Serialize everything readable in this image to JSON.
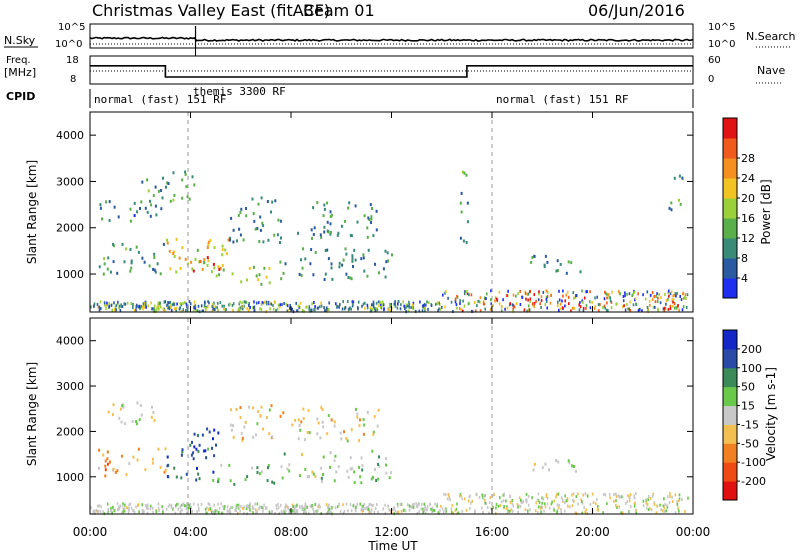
{
  "header": {
    "title": "Christmas Valley East (fitACF)",
    "beam": "Beam 01",
    "date": "06/Jun/2016"
  },
  "summary": {
    "nsky_label": "N.Sky",
    "nsearch_label": "N.Search",
    "nsky_ticks": [
      "10^5",
      "10^0"
    ],
    "nsearch_ticks": [
      "10^5",
      "10^0"
    ],
    "freq_label": "Freq.",
    "freq_unit": "[MHz]",
    "freq_ticks": [
      "18",
      "8"
    ],
    "nave_label": "Nave",
    "nave_ticks": [
      "60",
      "0"
    ],
    "cpid_label": "CPID",
    "cpid_segments": [
      {
        "label": "normal (fast) 151 RF",
        "start_hour": 0
      },
      {
        "label": "themis 3300 RF",
        "start_hour": 3.9
      },
      {
        "label": "normal (fast) 151 RF",
        "start_hour": 16.0
      }
    ],
    "freq_series": [
      {
        "hour": 0,
        "mhz": 14.5
      },
      {
        "hour": 3,
        "mhz": 14.5
      },
      {
        "hour": 3,
        "mhz": 10.5
      },
      {
        "hour": 15,
        "mhz": 10.5
      },
      {
        "hour": 15,
        "mhz": 14.5
      },
      {
        "hour": 24,
        "mhz": 14.5
      }
    ]
  },
  "chart_data": [
    {
      "type": "heatmap",
      "name": "power",
      "ylabel": "Slant Range [km]",
      "yticks": [
        "1000",
        "2000",
        "3000",
        "4000"
      ],
      "ylim": [
        180,
        4500
      ],
      "xlim": [
        0,
        24
      ],
      "colorbar_label": "Power [dB]",
      "colorbar_ticks": [
        "4",
        "8",
        "12",
        "16",
        "20",
        "24",
        "28"
      ],
      "colorbar_colors": [
        "#1f2ff0",
        "#2c5aa0",
        "#3a8a78",
        "#5aaf4a",
        "#9bd03a",
        "#f2c423",
        "#f39020",
        "#f05a1a",
        "#e01414"
      ],
      "clim": [
        0,
        32
      ],
      "blobs": [
        {
          "x0": 0.3,
          "x1": 3.2,
          "r0": 2150,
          "r1": 2600,
          "v": 8
        },
        {
          "x0": 0.3,
          "x1": 3.0,
          "r0": 1000,
          "r1": 1700,
          "v": 10
        },
        {
          "x0": 2.0,
          "x1": 4.2,
          "r0": 2600,
          "r1": 3300,
          "v": 10
        },
        {
          "x0": 3.0,
          "x1": 5.5,
          "r0": 900,
          "r1": 1800,
          "v": 18
        },
        {
          "x0": 4.0,
          "x1": 5.2,
          "r0": 1050,
          "r1": 1400,
          "v": 27
        },
        {
          "x0": 5.0,
          "x1": 7.5,
          "r0": 800,
          "r1": 1200,
          "v": 16
        },
        {
          "x0": 5.5,
          "x1": 7.8,
          "r0": 1700,
          "r1": 2700,
          "v": 9
        },
        {
          "x0": 7.5,
          "x1": 12.0,
          "r0": 900,
          "r1": 1600,
          "v": 9
        },
        {
          "x0": 8.0,
          "x1": 11.5,
          "r0": 1800,
          "r1": 2600,
          "v": 9
        },
        {
          "x0": 14.7,
          "x1": 15.1,
          "r0": 1700,
          "r1": 3300,
          "v": 10
        },
        {
          "x0": 17.5,
          "x1": 19.6,
          "r0": 1000,
          "r1": 1450,
          "v": 9
        },
        {
          "x0": 23.0,
          "x1": 23.6,
          "r0": 2400,
          "r1": 3300,
          "v": 11
        }
      ]
    },
    {
      "type": "heatmap",
      "name": "velocity",
      "ylabel": "Slant Range [km]",
      "yticks": [
        "1000",
        "2000",
        "3000",
        "4000"
      ],
      "ylim": [
        180,
        4500
      ],
      "xlim": [
        0,
        24
      ],
      "colorbar_label": "Velocity [m s-1]",
      "colorbar_ticks": [
        "200",
        "100",
        "50",
        "15",
        "-15",
        "-50",
        "-100",
        "-200"
      ],
      "colorbar_colors": [
        "#1428c8",
        "#2a4aa8",
        "#3a8a5a",
        "#6ac84a",
        "#c8c8c8",
        "#f2c050",
        "#f08020",
        "#f04a14",
        "#e01010"
      ],
      "clim": [
        -250,
        250
      ],
      "blobs": [
        {
          "x0": 0.3,
          "x1": 2.8,
          "r0": 2200,
          "r1": 2700,
          "v": -5
        },
        {
          "x0": 0.3,
          "x1": 3.0,
          "r0": 1050,
          "r1": 1700,
          "v": -80
        },
        {
          "x0": 3.0,
          "x1": 5.0,
          "r0": 900,
          "r1": 1800,
          "v": 150
        },
        {
          "x0": 4.0,
          "x1": 5.5,
          "r0": 1600,
          "r1": 2100,
          "v": 180
        },
        {
          "x0": 5.0,
          "x1": 7.5,
          "r0": 850,
          "r1": 1300,
          "v": 60
        },
        {
          "x0": 5.5,
          "x1": 7.8,
          "r0": 1800,
          "r1": 2600,
          "v": -40
        },
        {
          "x0": 7.5,
          "x1": 12.0,
          "r0": 900,
          "r1": 1600,
          "v": 40
        },
        {
          "x0": 8.0,
          "x1": 11.5,
          "r0": 1800,
          "r1": 2600,
          "v": -20
        },
        {
          "x0": 17.5,
          "x1": 19.5,
          "r0": 1050,
          "r1": 1400,
          "v": 0
        }
      ]
    }
  ],
  "xaxis": {
    "label": "Time UT",
    "ticks": [
      "00:00",
      "04:00",
      "08:00",
      "12:00",
      "16:00",
      "20:00",
      "00:00"
    ]
  }
}
